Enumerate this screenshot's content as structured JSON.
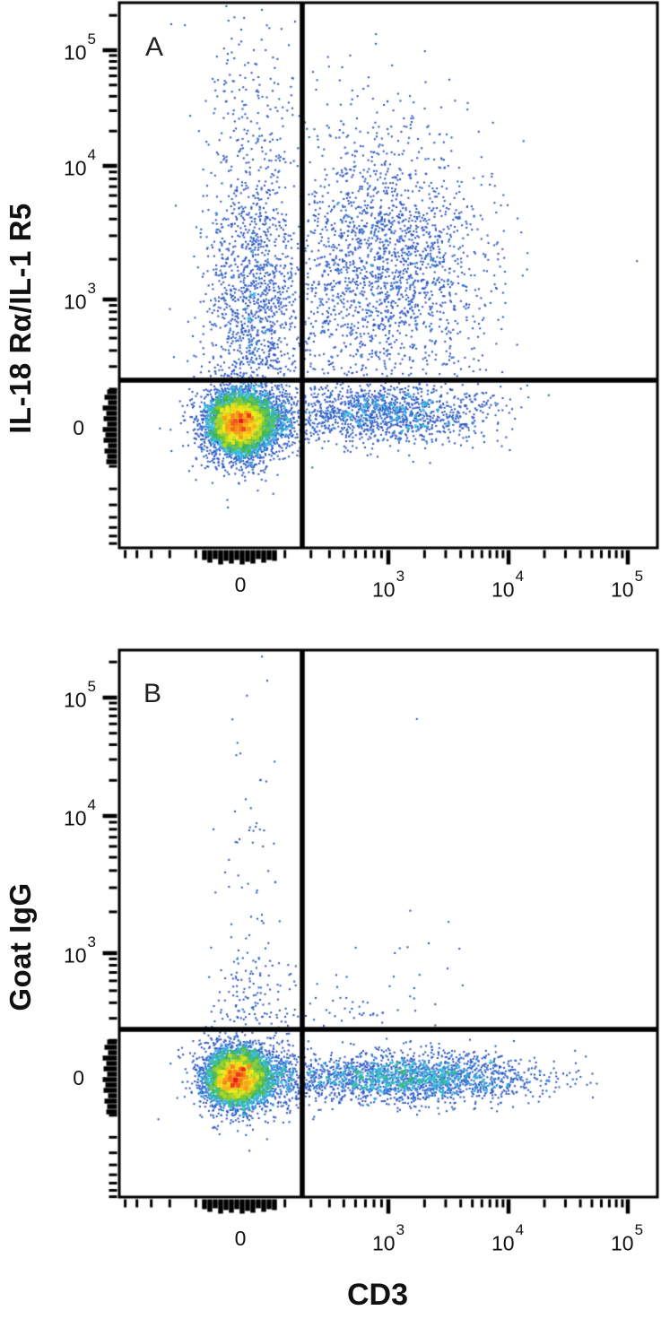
{
  "figure": {
    "x_axis_title": "CD3",
    "panel_a": {
      "letter": "A",
      "y_axis_title": "IL-18 Rα/IL-1 R5"
    },
    "panel_b": {
      "letter": "B",
      "y_axis_title": "Goat IgG"
    },
    "tick_labels": {
      "zero": "0",
      "base": "10",
      "exp3": "3",
      "exp4": "4",
      "exp5": "5"
    },
    "density_colormap": [
      {
        "t": 0.0,
        "color": "#1c3a94"
      },
      {
        "t": 0.22,
        "color": "#2a58c8"
      },
      {
        "t": 0.34,
        "color": "#38c0e4"
      },
      {
        "t": 0.46,
        "color": "#3cb54c"
      },
      {
        "t": 0.6,
        "color": "#a8d42c"
      },
      {
        "t": 0.72,
        "color": "#f7ec1e"
      },
      {
        "t": 0.85,
        "color": "#f7941d"
      },
      {
        "t": 1.0,
        "color": "#ec1c24"
      }
    ]
  },
  "chart_data": [
    {
      "panel": "A",
      "type": "scatter",
      "subtype": "flow_cytometry_density_dot_plot",
      "title": "",
      "xlabel": "CD3",
      "ylabel": "IL-18 Rα/IL-1 R5",
      "x_ticks": [
        "0",
        "10^3",
        "10^4",
        "10^5"
      ],
      "y_ticks": [
        "0",
        "10^3",
        "10^4",
        "10^5"
      ],
      "scale": "biexponential",
      "grid": false,
      "legend": "none",
      "quadrant_gate_fraction": {
        "x": 0.34,
        "y": 0.692
      },
      "populations": [
        {
          "name": "double_negative_core",
          "desc": "CD3- IL-18Ra- dense core at origin (max density)",
          "approx_center": {
            "x": "0",
            "y": "0"
          },
          "fx": 0.223,
          "fy": 0.771,
          "sx": 0.028,
          "sy": 0.0263,
          "n": 6000
        },
        {
          "name": "double_negative_halo",
          "desc": "blue halo around origin population",
          "approx_center": {
            "x": "0",
            "y": "0"
          },
          "fx": 0.228,
          "fy": 0.77,
          "sx": 0.047,
          "sy": 0.046,
          "n": 900
        },
        {
          "name": "double_negative_right_tail",
          "desc": "tail toward gate line",
          "approx_center": {
            "x": "10^2",
            "y": "0"
          },
          "fx": 0.287,
          "fy": 0.768,
          "sx": 0.035,
          "sy": 0.03,
          "n": 500
        },
        {
          "name": "cd3neg_il18ra_pos_column",
          "desc": "CD3- column above origin, IL-18Ra 10^2-10^4",
          "approx_center": {
            "x": "0",
            "y": "10^3"
          },
          "fx": 0.251,
          "fy": 0.546,
          "sx": 0.045,
          "sy": 0.123,
          "n": 1350,
          "clip": {
            "fyMax": 0.6855
          }
        },
        {
          "name": "cd3neg_il18ra_high",
          "desc": "sparse CD3- events up to 10^5",
          "approx_center": {
            "x": "0",
            "y": "10^4"
          },
          "fx": 0.244,
          "fy": 0.242,
          "sx": 0.043,
          "sy": 0.1,
          "n": 170
        },
        {
          "name": "cd3neg_il18ra_top",
          "desc": "very sparse CD3- events above 10^5",
          "approx_center": {
            "x": "0",
            "y": ">10^5"
          },
          "fx": 0.252,
          "fy": 0.094,
          "sx": 0.05,
          "sy": 0.07,
          "n": 25
        },
        {
          "name": "double_positive_cloud",
          "desc": "CD3+ IL-18Ra+ diffuse cloud (upper right quadrant)",
          "approx_center": {
            "x": "10^3",
            "y": "10^3"
          },
          "fx": 0.485,
          "fy": 0.489,
          "sx": 0.091,
          "sy": 0.128,
          "n": 2000,
          "clip": {
            "fxMin": 0.345,
            "fyMax": 0.6855
          }
        },
        {
          "name": "double_positive_cloud_tail",
          "desc": "sparse right tail of cloud",
          "approx_center": {
            "x": "5x10^3",
            "y": "10^3"
          },
          "fx": 0.618,
          "fy": 0.464,
          "sx": 0.066,
          "sy": 0.115,
          "n": 110,
          "clip": {
            "fxMin": 0.345,
            "fyMax": 0.6855
          }
        },
        {
          "name": "cd3pos_il18ra_neg_band",
          "desc": "CD3+ IL-18Ra- band right of gate",
          "approx_center": {
            "x": "10^3",
            "y": "0"
          },
          "fx": 0.477,
          "fy": 0.753,
          "sx": 0.091,
          "sy": 0.028,
          "n": 1300,
          "clip": {
            "fxMin": 0.345,
            "fyMin": 0.6975
          }
        },
        {
          "name": "cd3pos_band_tail",
          "desc": "right tail of CD3+ band",
          "approx_center": {
            "x": "4x10^3",
            "y": "0"
          },
          "fx": 0.643,
          "fy": 0.76,
          "sx": 0.05,
          "sy": 0.03,
          "n": 90,
          "clip": {
            "fxMin": 0.345,
            "fyMin": 0.6975
          }
        }
      ],
      "singles": [
        [
          0.962,
          0.474
        ],
        [
          0.7,
          0.523
        ],
        [
          0.638,
          0.446
        ],
        [
          0.698,
          0.336
        ],
        [
          0.647,
          0.196
        ],
        [
          0.507,
          0.115
        ],
        [
          0.568,
          0.089
        ],
        [
          0.555,
          0.25
        ],
        [
          0.433,
          0.161
        ],
        [
          0.36,
          0.127
        ],
        [
          0.232,
          0.028
        ],
        [
          0.203,
          0.033
        ],
        [
          0.25,
          0.087
        ],
        [
          0.272,
          0.087
        ],
        [
          0.195,
          0.15
        ],
        [
          0.195,
          0.868
        ],
        [
          0.273,
          0.852
        ],
        [
          0.202,
          0.926
        ],
        [
          0.758,
          0.702
        ],
        [
          0.798,
          0.72
        ]
      ]
    },
    {
      "panel": "B",
      "type": "scatter",
      "subtype": "flow_cytometry_density_dot_plot",
      "title": "",
      "xlabel": "CD3",
      "ylabel": "Goat IgG",
      "x_ticks": [
        "0",
        "10^3",
        "10^4",
        "10^5"
      ],
      "y_ticks": [
        "0",
        "10^3",
        "10^4",
        "10^5"
      ],
      "scale": "biexponential",
      "grid": false,
      "legend": "none",
      "quadrant_gate_fraction": {
        "x": 0.34,
        "y": 0.693
      },
      "populations": [
        {
          "name": "negative_core",
          "desc": "isotype control dense core at origin (max density)",
          "approx_center": {
            "x": "0",
            "y": "0"
          },
          "fx": 0.219,
          "fy": 0.782,
          "sx": 0.028,
          "sy": 0.0246,
          "n": 5200
        },
        {
          "name": "negative_halo",
          "desc": "blue halo around origin population",
          "approx_center": {
            "x": "0",
            "y": "0"
          },
          "fx": 0.224,
          "fy": 0.78,
          "sx": 0.046,
          "sy": 0.042,
          "n": 650
        },
        {
          "name": "negative_right_tail",
          "desc": "tail toward gate line",
          "approx_center": {
            "x": "10^2",
            "y": "0"
          },
          "fx": 0.302,
          "fy": 0.78,
          "sx": 0.032,
          "sy": 0.026,
          "n": 380
        },
        {
          "name": "cd3pos_igg_neg_band",
          "desc": "CD3+ IgG- horizontal band with green-cyan core",
          "approx_center": {
            "x": "2x10^3",
            "y": "0"
          },
          "fx": 0.535,
          "fy": 0.782,
          "sx": 0.116,
          "sy": 0.0215,
          "n": 2300,
          "clip": {
            "fxMin": 0.345
          }
        },
        {
          "name": "band_upper_fringe",
          "desc": "few events just above gate",
          "approx_center": {
            "x": "10^3",
            "y": "2x10^2"
          },
          "fx": 0.41,
          "fy": 0.661,
          "sx": 0.06,
          "sy": 0.02,
          "n": 40,
          "clip": {
            "fyMax": 0.69
          }
        },
        {
          "name": "cd3neg_column_low",
          "desc": "sparse CD3- events just above gate",
          "approx_center": {
            "x": "0",
            "y": "3x10^2"
          },
          "fx": 0.249,
          "fy": 0.631,
          "sx": 0.04,
          "sy": 0.046,
          "n": 130,
          "clip": {
            "fyMax": 0.6885
          }
        },
        {
          "name": "cd3neg_column_sparse",
          "desc": "very sparse CD3- events up to 10^5",
          "approx_center": {
            "x": "0",
            "y": "10^3-10^5"
          },
          "fx": 0.241,
          "fy": 0.369,
          "sx": 0.034,
          "sy": 0.18,
          "n": 50,
          "clip": {
            "fyMax": 0.6885
          }
        },
        {
          "name": "upper_right_sparse",
          "desc": "rare CD3+ events slightly above gate",
          "approx_center": {
            "x": "10^3",
            "y": "2x10^2"
          },
          "fx": 0.51,
          "fy": 0.6,
          "sx": 0.092,
          "sy": 0.058,
          "n": 18,
          "clip": {
            "fxMin": 0.345,
            "fyMax": 0.688
          }
        }
      ],
      "singles": [
        [
          0.553,
          0.126
        ],
        [
          0.612,
          0.497
        ],
        [
          0.575,
          0.536
        ],
        [
          0.632,
          0.546
        ],
        [
          0.512,
          0.554
        ],
        [
          0.51,
          0.597
        ],
        [
          0.405,
          0.616
        ],
        [
          0.548,
          0.618
        ],
        [
          0.638,
          0.613
        ],
        [
          0.365,
          0.636
        ],
        [
          0.422,
          0.636
        ],
        [
          0.453,
          0.643
        ],
        [
          0.275,
          0.056
        ],
        [
          0.225,
          0.189
        ],
        [
          0.262,
          0.238
        ],
        [
          0.215,
          0.295
        ],
        [
          0.248,
          0.352
        ],
        [
          0.228,
          0.434
        ],
        [
          0.265,
          0.484
        ],
        [
          0.208,
          0.525
        ]
      ]
    }
  ]
}
